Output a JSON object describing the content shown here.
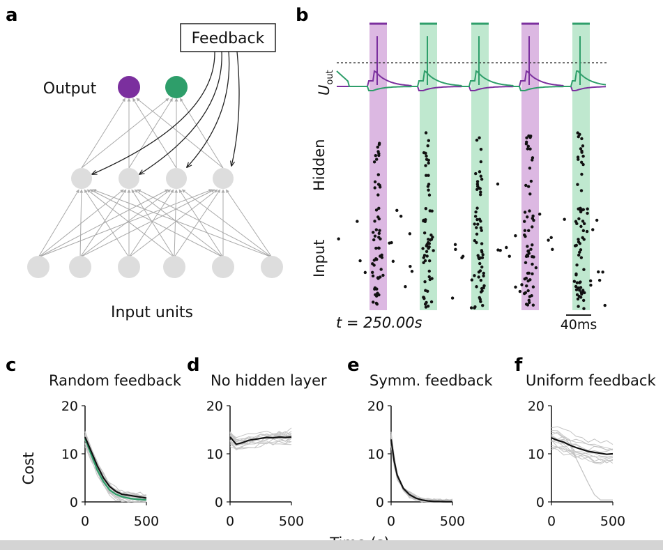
{
  "panels": {
    "a": {
      "letter": "a",
      "feedback_label": "Feedback",
      "output_label": "Output",
      "input_label": "Input units",
      "output_colors": [
        "#7b2f9e",
        "#2e9e6a"
      ],
      "n_input": 6,
      "n_hidden": 4,
      "n_output": 2
    },
    "b": {
      "letter": "b",
      "u_label": "U",
      "u_sub": "out",
      "hidden_label": "Hidden",
      "input_label": "Input",
      "time_text": "t = 250.00s",
      "scale_label": "40ms",
      "stim_sequence": [
        "purple",
        "green",
        "green",
        "purple",
        "green"
      ],
      "colors": {
        "purple": "#7b2f9e",
        "green": "#2e9e6a",
        "purple_band": "#dcb8e2",
        "green_band": "#bfe8cf"
      }
    }
  },
  "cost_xlabel": "Time (s)",
  "cost_ylabel": "Cost",
  "chart_data": [
    {
      "type": "line",
      "letter": "c",
      "title": "Random feedback",
      "x": [
        0,
        50,
        100,
        150,
        200,
        250,
        300,
        350,
        400,
        450,
        500
      ],
      "series": [
        {
          "values": [
            13.5,
            10.5,
            7.5,
            5.0,
            3.2,
            2.2,
            1.6,
            1.4,
            1.2,
            1.0,
            0.8
          ],
          "color": "#111111"
        },
        {
          "values": [
            13.2,
            9.8,
            6.6,
            4.2,
            2.5,
            1.6,
            1.1,
            0.8,
            0.6,
            0.5,
            0.4
          ],
          "color": "#2e9e6a"
        }
      ],
      "xlim": [
        0,
        500
      ],
      "ylim": [
        0,
        20
      ],
      "xticks": [
        0,
        500
      ],
      "yticks": [
        0,
        10,
        20
      ]
    },
    {
      "type": "line",
      "letter": "d",
      "title": "No hidden layer",
      "x": [
        0,
        50,
        100,
        150,
        200,
        250,
        300,
        350,
        400,
        450,
        500
      ],
      "series": [
        {
          "values": [
            13.5,
            12.0,
            12.3,
            12.8,
            13.0,
            13.2,
            13.4,
            13.3,
            13.5,
            13.4,
            13.5
          ],
          "color": "#111111"
        }
      ],
      "xlim": [
        0,
        500
      ],
      "ylim": [
        0,
        20
      ],
      "xticks": [
        0,
        500
      ],
      "yticks": [
        0,
        10,
        20
      ]
    },
    {
      "type": "line",
      "letter": "e",
      "title": "Symm. feedback",
      "x": [
        0,
        25,
        50,
        100,
        150,
        200,
        250,
        300,
        350,
        400,
        450,
        500
      ],
      "series": [
        {
          "values": [
            13.0,
            8.5,
            5.5,
            2.8,
            1.5,
            0.8,
            0.4,
            0.2,
            0.1,
            0.1,
            0.05,
            0.05
          ],
          "color": "#111111"
        }
      ],
      "xlim": [
        0,
        500
      ],
      "ylim": [
        0,
        20
      ],
      "xticks": [
        0,
        500
      ],
      "yticks": [
        0,
        10,
        20
      ]
    },
    {
      "type": "line",
      "letter": "f",
      "title": "Uniform feedback",
      "x": [
        0,
        50,
        100,
        150,
        200,
        250,
        300,
        350,
        400,
        450,
        500
      ],
      "series": [
        {
          "values": [
            13.3,
            12.8,
            12.4,
            11.8,
            11.3,
            10.9,
            10.5,
            10.3,
            10.1,
            9.9,
            10.0
          ],
          "color": "#111111"
        }
      ],
      "xlim": [
        0,
        500
      ],
      "ylim": [
        0,
        20
      ],
      "xticks": [
        0,
        500
      ],
      "yticks": [
        0,
        10,
        20
      ]
    }
  ]
}
